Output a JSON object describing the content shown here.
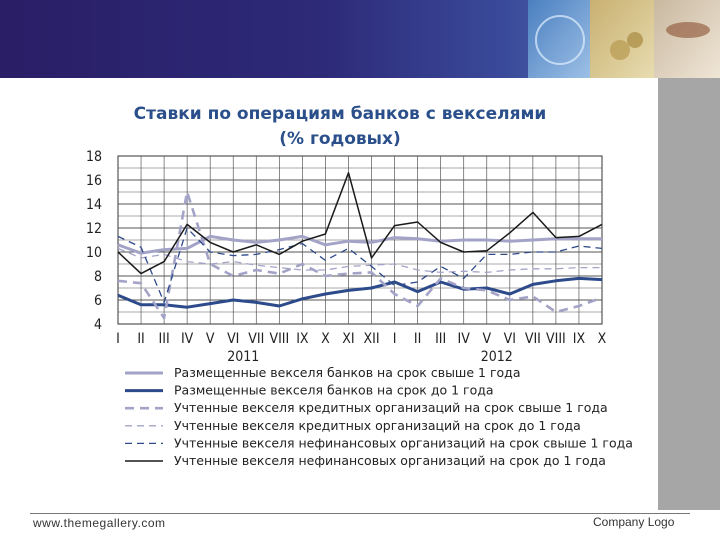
{
  "footer": {
    "website": "www.themegallery.com",
    "company": "Company Logo"
  },
  "chart_data": {
    "type": "line",
    "title_line1": "Ставки по операциям банков с векселями",
    "title_line2": "(% годовых)",
    "x_labels": [
      "I",
      "II",
      "III",
      "IV",
      "V",
      "VI",
      "VII",
      "VIII",
      "IX",
      "X",
      "XI",
      "XII",
      "I",
      "II",
      "III",
      "IV",
      "V",
      "VI",
      "VII",
      "VIII",
      "IX",
      "X"
    ],
    "year_labels": [
      {
        "text": "2011",
        "at_index": 5
      },
      {
        "text": "2012",
        "at_index": 16
      }
    ],
    "y_ticks": [
      4,
      6,
      8,
      10,
      12,
      14,
      16,
      18
    ],
    "ylim": [
      4,
      18
    ],
    "grid": true,
    "legend_position": "bottom",
    "series": [
      {
        "name": "Размещенные векселя банков на срок свыше 1 года",
        "color": "#a3a3c8",
        "style": "solid-thick",
        "values": [
          10.6,
          9.9,
          10.2,
          10.3,
          11.3,
          11.0,
          10.8,
          11.0,
          11.3,
          10.6,
          10.9,
          10.8,
          11.2,
          11.1,
          10.9,
          11.0,
          11.0,
          10.9,
          11.0,
          11.1,
          11.1,
          11.1
        ]
      },
      {
        "name": "Размещенные векселя банков на срок до 1 года",
        "color": "#2d4a8a",
        "style": "solid-thick",
        "values": [
          6.4,
          5.6,
          5.6,
          5.4,
          5.7,
          6.0,
          5.8,
          5.5,
          6.1,
          6.5,
          6.8,
          7.0,
          7.5,
          6.7,
          7.5,
          6.9,
          7.0,
          6.5,
          7.3,
          7.6,
          7.8,
          7.7
        ]
      },
      {
        "name": "Учтенные векселя кредитных организаций на срок свыше 1 года",
        "color": "#a3a3c8",
        "style": "dashed-thick",
        "values": [
          7.6,
          7.4,
          4.5,
          15.0,
          9.0,
          8.0,
          8.5,
          8.2,
          9.0,
          8.0,
          8.2,
          8.3,
          6.5,
          5.5,
          7.8,
          7.0,
          6.8,
          6.0,
          6.3,
          5.0,
          5.5,
          6.2
        ]
      },
      {
        "name": "Учтенные векселя кредитных организаций на срок до 1 года",
        "color": "#a3a3c8",
        "style": "dashed-thin",
        "values": [
          10.3,
          9.5,
          9.8,
          9.2,
          9.0,
          9.2,
          8.9,
          8.7,
          8.5,
          8.5,
          8.8,
          8.9,
          9.0,
          8.5,
          8.3,
          8.4,
          8.3,
          8.5,
          8.6,
          8.6,
          8.7,
          8.7
        ]
      },
      {
        "name": "Учтенные векселя нефинансовых организаций на срок свыше 1 года",
        "color": "#2d4a8a",
        "style": "dashed-thin",
        "values": [
          11.3,
          10.4,
          5.8,
          12.0,
          10.0,
          9.7,
          9.8,
          10.2,
          10.7,
          9.3,
          10.3,
          8.8,
          7.2,
          7.5,
          8.8,
          7.8,
          9.8,
          9.8,
          10.0,
          10.0,
          10.5,
          10.3
        ]
      },
      {
        "name": "Учтенные векселя нефинансовых организаций на срок до 1 года",
        "color": "#1a1a1a",
        "style": "solid-thin",
        "values": [
          10.0,
          8.2,
          9.2,
          12.3,
          10.8,
          10.0,
          10.6,
          9.8,
          10.9,
          11.5,
          16.6,
          9.5,
          12.2,
          12.5,
          10.8,
          10.0,
          10.1,
          11.6,
          13.3,
          11.2,
          11.3,
          12.3
        ]
      }
    ]
  }
}
